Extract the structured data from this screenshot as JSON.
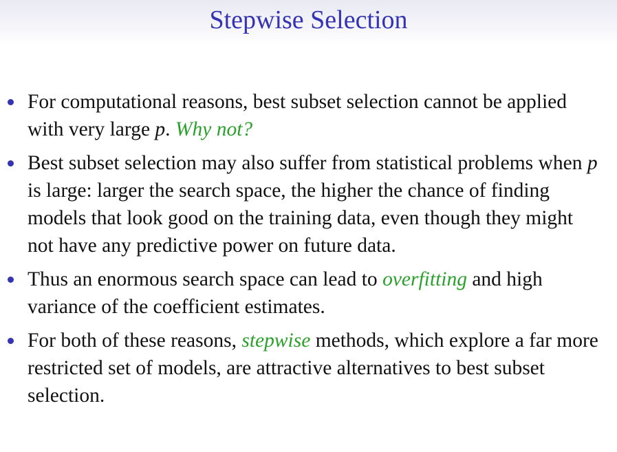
{
  "slide": {
    "title": "Stepwise Selection",
    "accent_color": "#3333b3",
    "emphasis_color": "#2ca02c"
  },
  "bullets": [
    {
      "t1": "For computational reasons, best subset selection cannot be applied with very large ",
      "m1": "p",
      "t2": ".  ",
      "e1": "Why not?"
    },
    {
      "t1": "Best subset selection may also suffer from statistical problems when ",
      "m1": "p",
      "t2": " is large: larger the search space, the higher the chance of finding models that look good on the training data, even though they might not have any predictive power on future data."
    },
    {
      "t1": "Thus an enormous search space can lead to ",
      "e1": "overfitting",
      "t2": " and high variance of the coefficient estimates."
    },
    {
      "t1": "For both of these reasons, ",
      "e1": "stepwise",
      "t2": " methods, which explore a far more restricted set of models, are attractive alternatives to best subset selection."
    }
  ]
}
